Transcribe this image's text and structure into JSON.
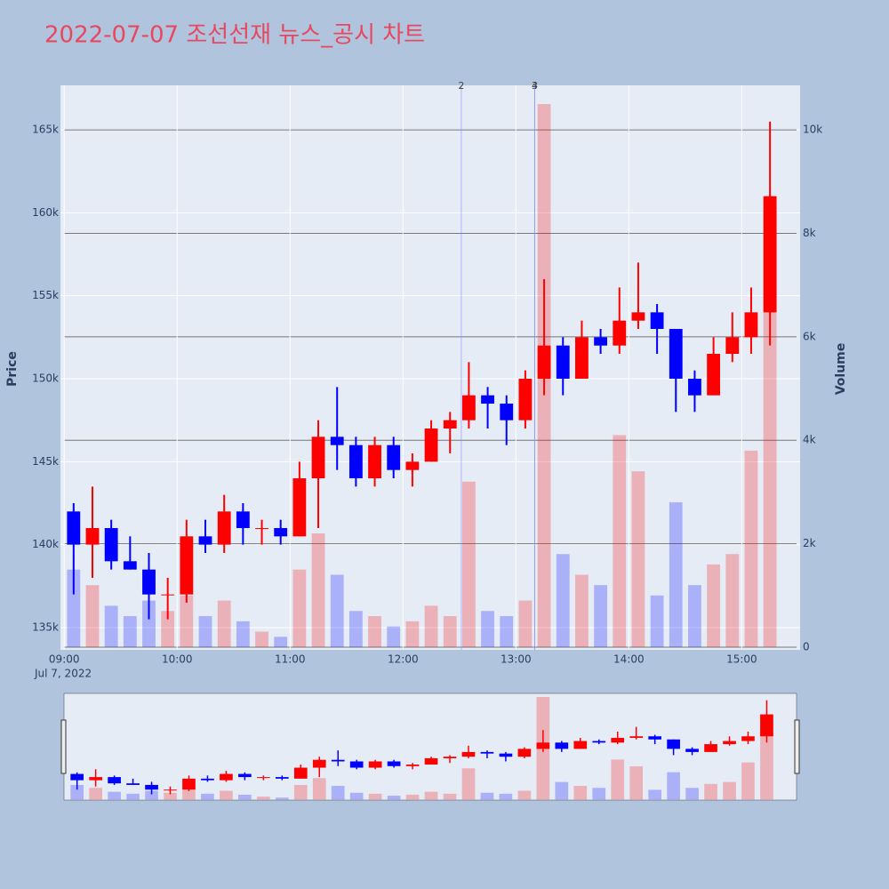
{
  "chart_data": {
    "type": "candlestick",
    "title": "2022-07-07 조선선재 뉴스_공시 차트",
    "x_date_label": "Jul 7, 2022",
    "y_title": "Price",
    "y2_title": "Volume",
    "x": [
      "09:05",
      "09:15",
      "09:25",
      "09:35",
      "09:45",
      "09:55",
      "10:05",
      "10:15",
      "10:25",
      "10:35",
      "10:45",
      "10:55",
      "11:05",
      "11:15",
      "11:25",
      "11:35",
      "11:45",
      "11:55",
      "12:05",
      "12:15",
      "12:25",
      "12:35",
      "12:45",
      "12:55",
      "13:05",
      "13:15",
      "13:25",
      "13:35",
      "13:45",
      "13:55",
      "14:05",
      "14:15",
      "14:25",
      "14:35",
      "14:45",
      "14:55",
      "15:05",
      "15:15"
    ],
    "open": [
      142000,
      140000,
      141000,
      139000,
      138500,
      137000,
      137000,
      140500,
      140000,
      142000,
      141000,
      141000,
      140500,
      144000,
      146500,
      146000,
      144000,
      146000,
      144500,
      145000,
      147000,
      147500,
      149000,
      148500,
      147500,
      150000,
      152000,
      150000,
      152500,
      152000,
      153500,
      154000,
      153000,
      150000,
      149000,
      151500,
      152500,
      154000
    ],
    "high": [
      142500,
      143500,
      141500,
      140500,
      139500,
      138000,
      141500,
      141500,
      143000,
      142500,
      141500,
      141500,
      145000,
      147500,
      149500,
      146500,
      146500,
      146500,
      145500,
      147500,
      148000,
      151000,
      149500,
      149000,
      150500,
      156000,
      152500,
      153500,
      153000,
      155500,
      157000,
      154500,
      153000,
      150500,
      152500,
      154000,
      155500,
      165500
    ],
    "low": [
      137000,
      138000,
      138500,
      138500,
      135500,
      135500,
      136500,
      139500,
      139500,
      140000,
      140000,
      140000,
      140500,
      141000,
      144500,
      143500,
      143500,
      144000,
      143500,
      145000,
      145500,
      147000,
      147000,
      146000,
      147000,
      149000,
      149000,
      150000,
      151500,
      151500,
      153000,
      151500,
      148000,
      148000,
      149000,
      151000,
      151500,
      152000
    ],
    "close": [
      140000,
      141000,
      139000,
      138500,
      137000,
      137000,
      140500,
      140000,
      142000,
      141000,
      141000,
      140500,
      144000,
      146500,
      146000,
      144000,
      146000,
      144500,
      145000,
      147000,
      147500,
      149000,
      148500,
      147500,
      150000,
      152000,
      150000,
      152500,
      152000,
      153500,
      154000,
      153000,
      150000,
      149000,
      151500,
      152500,
      154000,
      161000
    ],
    "volume": [
      1500,
      1200,
      800,
      600,
      900,
      700,
      1000,
      600,
      900,
      500,
      300,
      200,
      1500,
      2200,
      1400,
      700,
      600,
      400,
      500,
      800,
      600,
      3200,
      700,
      600,
      900,
      10500,
      1800,
      1400,
      1200,
      4100,
      3400,
      1000,
      2800,
      1200,
      1600,
      1800,
      3800,
      8500
    ],
    "increasing_color": "#ff0000",
    "decreasing_color": "#0000ff",
    "annotations": [
      {
        "x": "12:31",
        "label": "2"
      },
      {
        "x": "13:10",
        "label": "3"
      },
      {
        "x": "13:10",
        "label": "4"
      }
    ],
    "xlim": [
      "08:58",
      "15:31"
    ],
    "xticks": [
      "09:00",
      "10:00",
      "11:00",
      "12:00",
      "13:00",
      "14:00",
      "15:00"
    ],
    "ylim": [
      133660,
      167680
    ],
    "yticks": [
      {
        "value": 135000,
        "label": "135k"
      },
      {
        "value": 140000,
        "label": "140k"
      },
      {
        "value": 145000,
        "label": "145k"
      },
      {
        "value": 150000,
        "label": "150k"
      },
      {
        "value": 155000,
        "label": "155k"
      },
      {
        "value": 160000,
        "label": "160k"
      },
      {
        "value": 165000,
        "label": "165k"
      }
    ],
    "y2lim": [
      -52,
      10862
    ],
    "y2ticks": [
      0,
      {
        "value": 2000,
        "label": "2k"
      },
      {
        "value": 4000,
        "label": "4k"
      },
      {
        "value": 6000,
        "label": "6k"
      },
      {
        "value": 8000,
        "label": "8k"
      },
      {
        "value": 10000,
        "label": "10k"
      }
    ],
    "grid": true,
    "rangeslider": true
  }
}
